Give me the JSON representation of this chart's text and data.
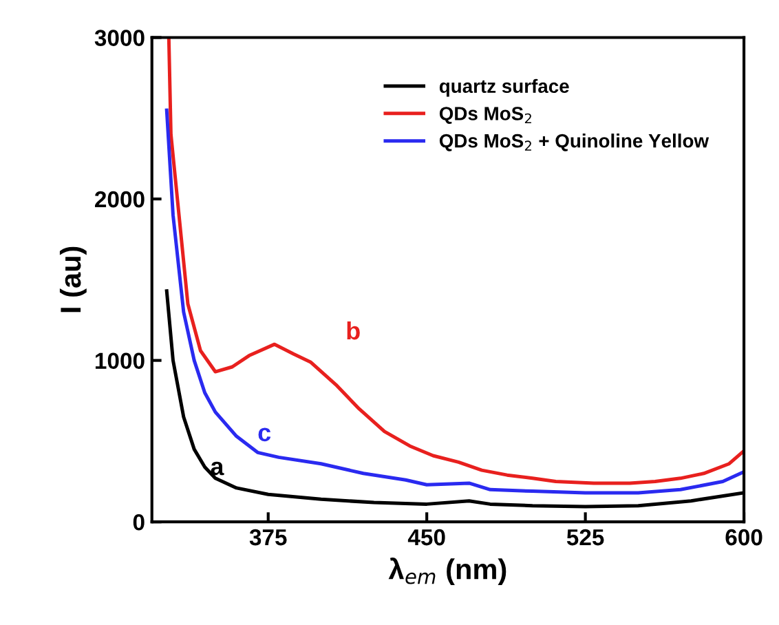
{
  "chart_data": {
    "type": "line",
    "xlabel": "λ$_{em}$ (nm)",
    "ylabel": "I (au)",
    "xlim": [
      320,
      600
    ],
    "xticks": [
      375,
      450,
      525,
      600
    ],
    "ylim": [
      0,
      3000
    ],
    "yticks": [
      0,
      1000,
      2000,
      3000
    ],
    "grid": false,
    "legend": "top right",
    "line_style": "solid",
    "marker": "none",
    "series": [
      {
        "name": "quartz surface",
        "color": "#000000",
        "x": [
          327,
          330,
          335,
          340,
          345,
          350,
          360,
          375,
          400,
          425,
          450,
          470,
          480,
          500,
          525,
          550,
          575,
          600
        ],
        "values": [
          1430,
          1000,
          650,
          450,
          340,
          270,
          210,
          170,
          140,
          120,
          110,
          130,
          110,
          100,
          95,
          100,
          130,
          180
        ]
      },
      {
        "name": "QDs MoS$_{2}$",
        "color": "#e8201e",
        "x": [
          328,
          329,
          337,
          343,
          350,
          358,
          366,
          378,
          387,
          395,
          407,
          418,
          430,
          442,
          453,
          465,
          476,
          488,
          500,
          511,
          529,
          546,
          558,
          570,
          581,
          593,
          600
        ],
        "values": [
          3000,
          2400,
          1350,
          1060,
          930,
          960,
          1030,
          1100,
          1040,
          990,
          850,
          700,
          560,
          470,
          410,
          370,
          320,
          290,
          270,
          250,
          240,
          240,
          250,
          270,
          300,
          360,
          440
        ]
      },
      {
        "name": "QDs MoS$_{2}$ + Quinoline Yellow",
        "color": "#2a2af0",
        "x": [
          327,
          330,
          335,
          340,
          345,
          350,
          360,
          370,
          380,
          400,
          420,
          440,
          450,
          470,
          480,
          500,
          525,
          550,
          570,
          590,
          600
        ],
        "values": [
          2550,
          1900,
          1300,
          1000,
          800,
          680,
          530,
          430,
          400,
          360,
          300,
          260,
          230,
          240,
          200,
          190,
          180,
          180,
          200,
          250,
          310
        ]
      }
    ],
    "annotations": [
      "a",
      "b",
      "c"
    ]
  }
}
